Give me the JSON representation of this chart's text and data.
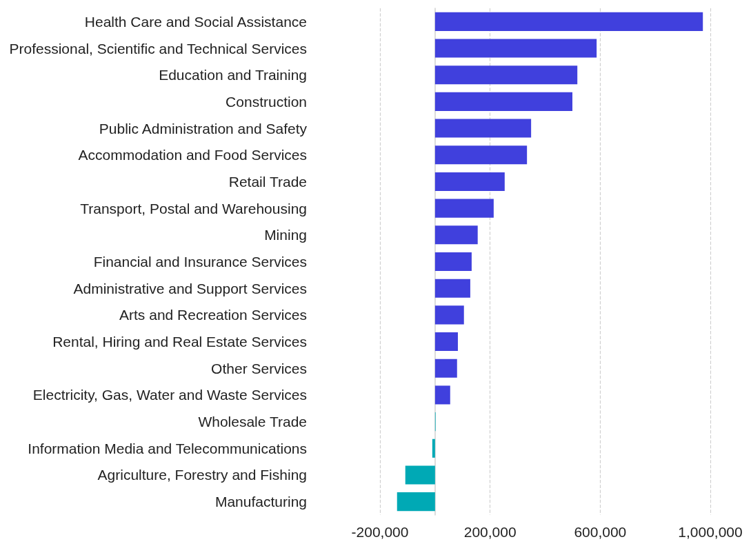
{
  "chart_data": {
    "type": "bar",
    "orientation": "horizontal",
    "categories": [
      "Health Care and Social Assistance",
      "Professional, Scientific and Technical Services",
      "Education and Training",
      "Construction",
      "Public Administration and Safety",
      "Accommodation and Food Services",
      "Retail Trade",
      "Transport, Postal and Warehousing",
      "Mining",
      "Financial and Insurance Services",
      "Administrative and Support Services",
      "Arts and Recreation Services",
      "Rental, Hiring and Real Estate Services",
      "Other Services",
      "Electricity, Gas, Water and Waste Services",
      "Wholesale Trade",
      "Information Media and Telecommunications",
      "Agriculture, Forestry and Fishing",
      "Manufacturing"
    ],
    "values": [
      973000,
      587000,
      517000,
      499000,
      349000,
      334000,
      253000,
      213000,
      155000,
      133000,
      128000,
      105000,
      83000,
      80000,
      55000,
      2000,
      -10000,
      -108000,
      -138000
    ],
    "colors": [
      "#4040dd",
      "#4040dd",
      "#4040dd",
      "#4040dd",
      "#4040dd",
      "#4040dd",
      "#4040dd",
      "#4040dd",
      "#4040dd",
      "#4040dd",
      "#4040dd",
      "#4040dd",
      "#4040dd",
      "#4040dd",
      "#4040dd",
      "#00a9b5",
      "#00a9b5",
      "#00a9b5",
      "#00a9b5"
    ],
    "xlim": [
      -200000,
      1000000
    ],
    "xticks": [
      {
        "value": -200000,
        "label": "-200,000"
      },
      {
        "value": 200000,
        "label": "200,000"
      },
      {
        "value": 600000,
        "label": "600,000"
      },
      {
        "value": 1000000,
        "label": "1,000,000"
      }
    ],
    "grid": "x"
  }
}
